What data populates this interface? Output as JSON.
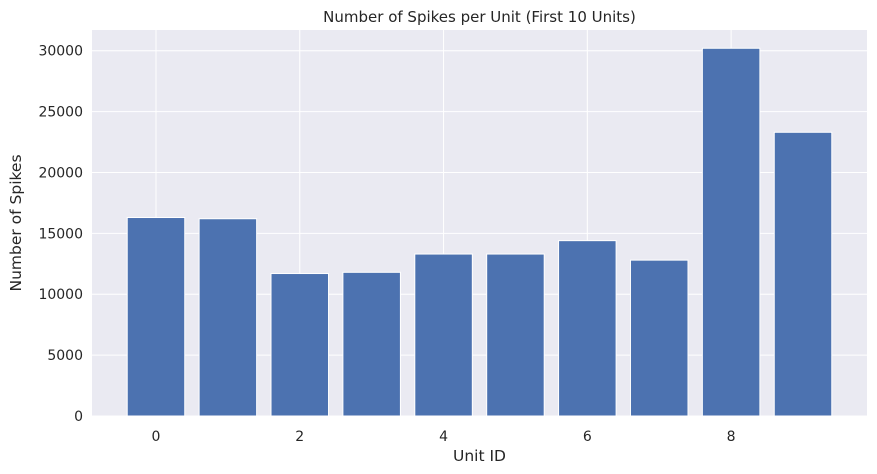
{
  "chart_data": {
    "type": "bar",
    "title": "Number of Spikes per Unit (First 10 Units)",
    "xlabel": "Unit ID",
    "ylabel": "Number of Spikes",
    "categories": [
      0,
      1,
      2,
      3,
      4,
      5,
      6,
      7,
      8,
      9
    ],
    "values": [
      16300,
      16200,
      11700,
      11800,
      13300,
      13300,
      14400,
      12800,
      30200,
      23300
    ],
    "x_ticks": [
      0,
      2,
      4,
      6,
      8
    ],
    "x_tick_labels": [
      "0",
      "2",
      "4",
      "6",
      "8"
    ],
    "y_ticks": [
      0,
      5000,
      10000,
      15000,
      20000,
      25000,
      30000
    ],
    "y_tick_labels": [
      "0",
      "5000",
      "10000",
      "15000",
      "20000",
      "25000",
      "30000"
    ],
    "ylim": [
      0,
      31700
    ],
    "xlim": [
      -0.89,
      9.89
    ],
    "grid": true,
    "colors": {
      "bar": "#4c72b0",
      "plot_background": "#eaeaf2",
      "grid": "#ffffff",
      "text": "#262626"
    }
  }
}
